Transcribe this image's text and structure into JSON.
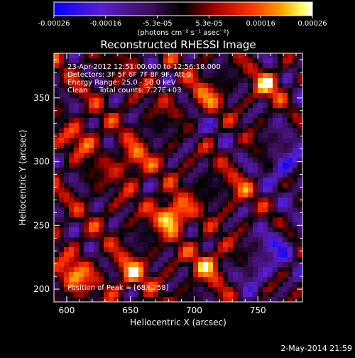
{
  "colorbar": {
    "tick_labels": [
      "-0.00026",
      "-0.00016",
      "-5.3e-05",
      "5.3e-05",
      "0.00016",
      "0.00026"
    ],
    "unit_label": "(photons cm⁻² s⁻¹ asec⁻²)"
  },
  "chart_data": {
    "type": "heatmap",
    "title": "Reconstructed RHESSI Image",
    "xlabel": "Heliocentric X (arcsec)",
    "ylabel": "Heliocentric Y (arcsec)",
    "xlim": [
      590,
      785
    ],
    "ylim": [
      190,
      385
    ],
    "x_ticks": [
      600,
      650,
      700,
      750
    ],
    "y_ticks": [
      200,
      250,
      300,
      350
    ],
    "color_range": [
      -0.00026,
      0.00026
    ],
    "colormap": "RHESSI blue-purple-black-red-yellow-white",
    "annotations": [
      "23-Apr-2012 12:51:00.000 to 12:56:18.000",
      "Detectors: 3F 5F 6F 7F 8F 9F, Att 0",
      "Energy Range: 25.0 - 50.0 keV",
      "Clean     Total counts: 7.27E+03"
    ],
    "peak_label": "Position of Peak = [683,258]",
    "peak": [
      683,
      258
    ],
    "emission_sources": [
      {
        "x": 683,
        "y": 258,
        "value": 0.00026
      },
      {
        "x": 605,
        "y": 210,
        "value": 0.00018
      },
      {
        "x": 650,
        "y": 212,
        "value": 0.00016
      },
      {
        "x": 712,
        "y": 220,
        "value": 0.00016
      },
      {
        "x": 758,
        "y": 360,
        "value": 0.00019
      },
      {
        "x": 652,
        "y": 300,
        "value": 0.00015
      },
      {
        "x": 612,
        "y": 318,
        "value": 0.00011
      },
      {
        "x": 708,
        "y": 350,
        "value": 0.00012
      },
      {
        "x": 735,
        "y": 278,
        "value": 0.0001
      }
    ],
    "absorption_sources": [
      {
        "x": 770,
        "y": 298,
        "value": -0.00016
      },
      {
        "x": 750,
        "y": 215,
        "value": -0.00013
      },
      {
        "x": 765,
        "y": 235,
        "value": -0.00012
      },
      {
        "x": 700,
        "y": 325,
        "value": -9e-05
      }
    ]
  },
  "footer": {
    "timestamp": "2-May-2014 21:59"
  }
}
